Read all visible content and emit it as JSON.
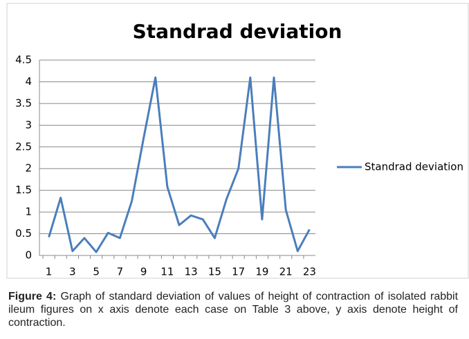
{
  "chart_data": {
    "type": "line",
    "title": "Standrad deviation",
    "x": [
      1,
      2,
      3,
      4,
      5,
      6,
      7,
      8,
      9,
      10,
      11,
      12,
      13,
      14,
      15,
      16,
      17,
      18,
      19,
      20,
      21,
      22,
      23
    ],
    "xlim": [
      0.5,
      23.5
    ],
    "xticks": [
      1,
      3,
      5,
      7,
      9,
      11,
      13,
      15,
      17,
      19,
      21,
      23
    ],
    "series": [
      {
        "name": "Standrad deviation",
        "color": "#4a7ebb",
        "values": [
          0.42,
          1.33,
          0.1,
          0.4,
          0.08,
          0.52,
          0.4,
          1.25,
          2.7,
          4.1,
          1.58,
          0.7,
          0.92,
          0.83,
          0.4,
          1.3,
          2.0,
          4.1,
          0.83,
          4.1,
          1.05,
          0.1,
          0.6
        ]
      }
    ],
    "ylim": [
      0,
      4.5
    ],
    "yticks": [
      0,
      0.5,
      1,
      1.5,
      2,
      2.5,
      3,
      3.5,
      4,
      4.5
    ],
    "grid": true,
    "legend": "right"
  },
  "caption": {
    "label": "Figure 4:",
    "text": "Graph of standard deviation of values of height of contraction of isolated rabbit ileum figures on x axis denote each case on Table 3 above, y axis denote height of contraction."
  }
}
